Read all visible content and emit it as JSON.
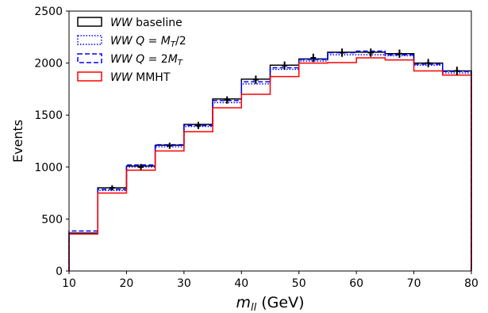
{
  "chart_data": {
    "type": "line",
    "xlabel_var": "m",
    "xlabel_sub": "ll",
    "xlabel_unit": " (GeV)",
    "ylabel": "Events",
    "xlim": [
      10,
      80
    ],
    "ylim": [
      0,
      2500
    ],
    "x_ticks": [
      "10",
      "20",
      "30",
      "40",
      "50",
      "60",
      "70",
      "80"
    ],
    "y_ticks": [
      "0",
      "500",
      "1000",
      "1500",
      "2000",
      "2500"
    ],
    "bin_edges": [
      10,
      15,
      20,
      25,
      30,
      35,
      40,
      45,
      50,
      55,
      60,
      65,
      70,
      75,
      80
    ],
    "series": [
      {
        "name": "WW baseline",
        "legend_italic": "WW",
        "legend_rest": " baseline",
        "color": "#000000",
        "style": "solid",
        "values": [
          365,
          800,
          1010,
          1210,
          1410,
          1655,
          1845,
          1980,
          2040,
          2105,
          2105,
          2090,
          2000,
          1925
        ]
      },
      {
        "name": "WW Q = M_T/2",
        "legend_italic": "WW Q",
        "legend_rest": " = M_T/2",
        "color": "#0000ff",
        "style": "dotted",
        "values": [
          360,
          775,
          1000,
          1195,
          1390,
          1620,
          1800,
          1940,
          2020,
          2080,
          2080,
          2070,
          1980,
          1905
        ]
      },
      {
        "name": "WW Q = 2M_T",
        "legend_italic": "WW Q",
        "legend_rest": " = 2M_T",
        "color": "#0000ff",
        "style": "dashed",
        "values": [
          385,
          785,
          1020,
          1215,
          1400,
          1640,
          1820,
          1955,
          2035,
          2100,
          2115,
          2080,
          1990,
          1920
        ]
      },
      {
        "name": "WW MMHT",
        "legend_italic": "WW",
        "legend_rest": " MMHT",
        "color": "#ff0000",
        "style": "solid",
        "values": [
          355,
          750,
          970,
          1155,
          1340,
          1570,
          1700,
          1870,
          2000,
          2005,
          2050,
          2030,
          1925,
          1885
        ]
      }
    ],
    "data_points": {
      "x": [
        17.5,
        22.5,
        27.5,
        32.5,
        37.5,
        42.5,
        47.5,
        52.5,
        57.5,
        62.5,
        67.5,
        72.5,
        77.5
      ],
      "y": [
        800,
        1000,
        1205,
        1400,
        1645,
        1840,
        1975,
        2050,
        2100,
        2100,
        2090,
        2000,
        1925
      ],
      "yerr": [
        25,
        30,
        30,
        35,
        35,
        40,
        40,
        40,
        40,
        40,
        40,
        40,
        40
      ],
      "color": "#000000"
    },
    "legend_position": "top-left",
    "grid": false
  }
}
